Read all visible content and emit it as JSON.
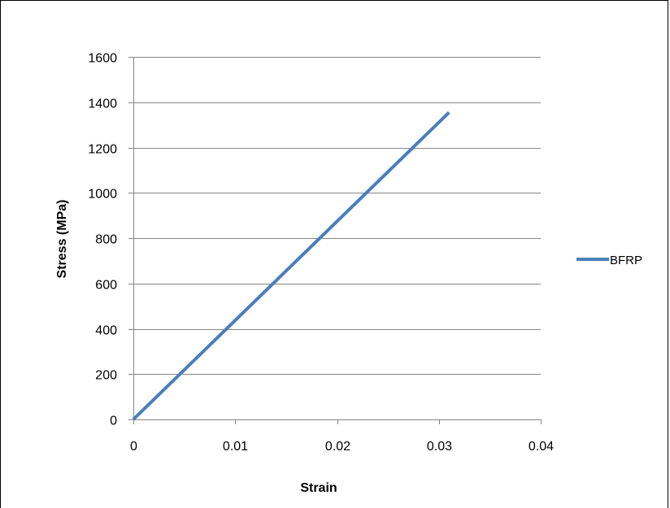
{
  "chart_data": {
    "type": "line",
    "title": "",
    "xlabel": "Strain",
    "ylabel": "Stress (MPa)",
    "xlim": [
      0,
      0.04
    ],
    "ylim": [
      0,
      1600
    ],
    "x_ticks": [
      "0",
      "0.01",
      "0.02",
      "0.03",
      "0.04"
    ],
    "y_ticks": [
      "0",
      "200",
      "400",
      "600",
      "800",
      "1000",
      "1200",
      "1400",
      "1600"
    ],
    "grid": "horizontal",
    "legend_position": "right",
    "series": [
      {
        "name": "BFRP",
        "color": "#4a7ebb",
        "x": [
          0,
          0.031
        ],
        "y": [
          0,
          1355
        ]
      }
    ]
  }
}
